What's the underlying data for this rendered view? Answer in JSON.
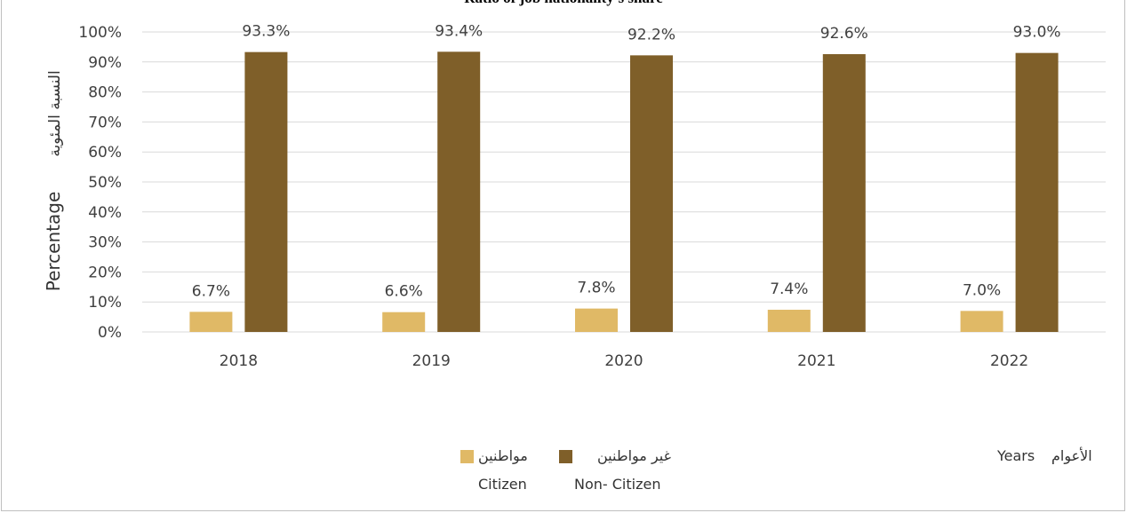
{
  "colors": {
    "citizen": "#E0B966",
    "non_citizen": "#7F5F29",
    "grid": "#d9d9d9",
    "text": "#404040"
  },
  "y_label_ar": "النسبة المئوية",
  "y_label_en": "Percentage",
  "title": "Ratio of job nationality's share",
  "legend": {
    "citizen_ar": "مواطنين",
    "non_citizen_ar": "غير مواطنين",
    "citizen_en": "Citizen",
    "non_citizen_en": "Non- Citizen"
  },
  "x_label_ar": "الأعوام",
  "x_label_en": "Years",
  "chart_data": {
    "type": "bar",
    "categories": [
      "2018",
      "2019",
      "2020",
      "2021",
      "2022"
    ],
    "series": [
      {
        "name": "Citizen",
        "values": [
          6.7,
          6.6,
          7.8,
          7.4,
          7.0
        ],
        "labels": [
          "6.7%",
          "6.6%",
          "7.8%",
          "7.4%",
          "7.0%"
        ]
      },
      {
        "name": "Non- Citizen",
        "values": [
          93.3,
          93.4,
          92.2,
          92.6,
          93.0
        ],
        "labels": [
          "93.3%",
          "93.4%",
          "92.2%",
          "92.6%",
          "93.0%"
        ]
      }
    ],
    "ylim": [
      0,
      100
    ],
    "yticks": [
      "0%",
      "10%",
      "20%",
      "30%",
      "40%",
      "50%",
      "60%",
      "70%",
      "80%",
      "90%",
      "100%"
    ],
    "grid": true,
    "legend_position": "bottom"
  }
}
